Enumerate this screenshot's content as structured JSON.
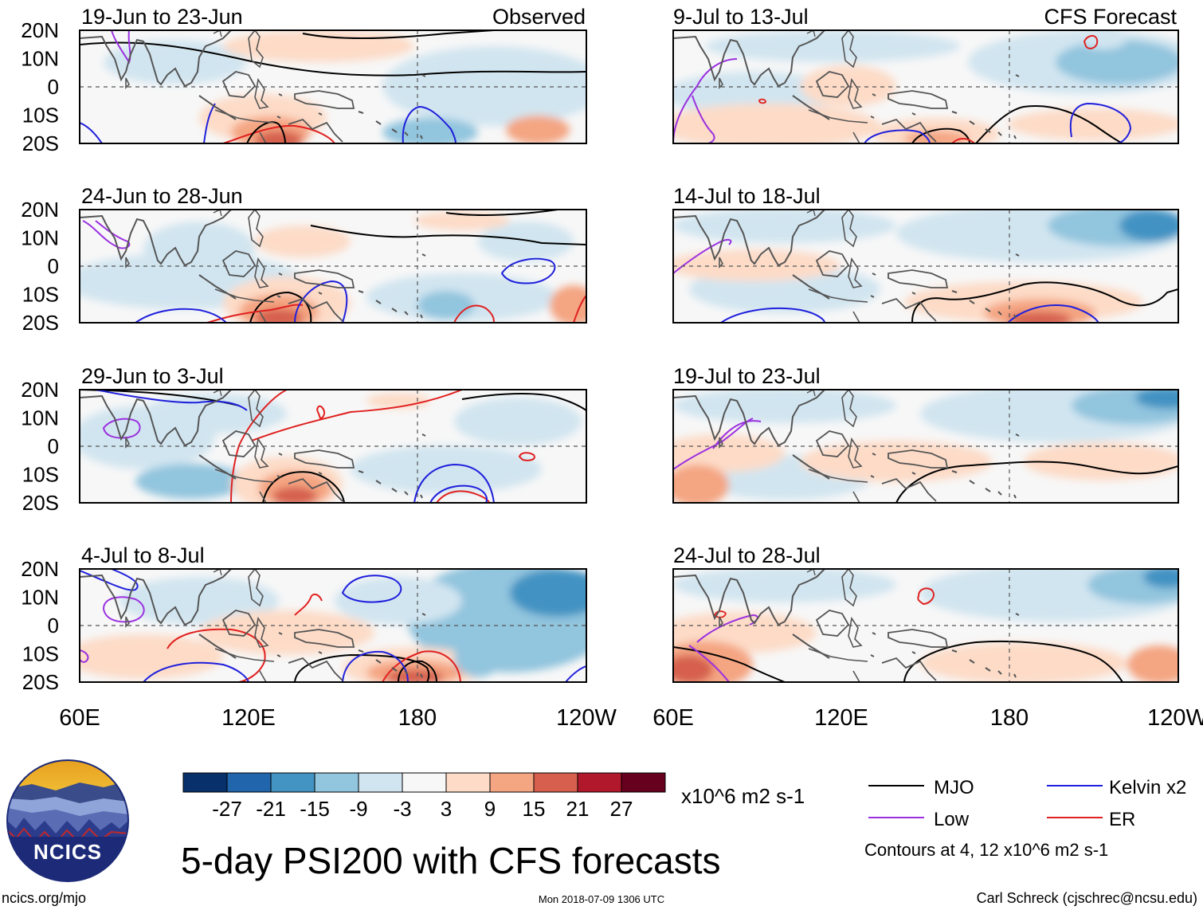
{
  "observed_label": "Observed",
  "forecast_label": "CFS Forecast",
  "panels_observed": [
    {
      "date_range": "19-Jun to 23-Jun"
    },
    {
      "date_range": "24-Jun to 28-Jun"
    },
    {
      "date_range": "29-Jun to 3-Jul"
    },
    {
      "date_range": "4-Jul to 8-Jul"
    }
  ],
  "panels_forecast": [
    {
      "date_range": "9-Jul to 13-Jul"
    },
    {
      "date_range": "14-Jul to 18-Jul"
    },
    {
      "date_range": "19-Jul to 23-Jul"
    },
    {
      "date_range": "24-Jul to 28-Jul"
    }
  ],
  "lat_labels": [
    "20N",
    "10N",
    "0",
    "10S",
    "20S"
  ],
  "lon_labels": [
    "60E",
    "120E",
    "180",
    "120W"
  ],
  "colorbar": {
    "colors": [
      "#08306b",
      "#2166ac",
      "#4393c3",
      "#92c5de",
      "#d1e5f0",
      "#f7f7f7",
      "#fddbc7",
      "#f4a582",
      "#d6604d",
      "#b2182b",
      "#67001f"
    ],
    "tick_labels": [
      "-27",
      "-21",
      "-15",
      "-9",
      "-3",
      "3",
      "9",
      "15",
      "21",
      "27"
    ],
    "units": "x10^6 m2 s-1"
  },
  "legend": {
    "items": [
      {
        "label": "MJO",
        "color": "#000000"
      },
      {
        "label": "Kelvin x2",
        "color": "#1f1fdc"
      },
      {
        "label": "Low",
        "color": "#9b30e0"
      },
      {
        "label": "ER",
        "color": "#e0201f"
      }
    ],
    "contours_note": "Contours at 4, 12 x10^6 m2 s-1"
  },
  "title": "5-day PSI200 with CFS forecasts",
  "logo_text": "NCICS",
  "site": "ncics.org/mjo",
  "timestamp": "Mon 2018-07-09 1306 UTC",
  "author": "Carl Schreck (cjschrec@ncsu.edu)"
}
